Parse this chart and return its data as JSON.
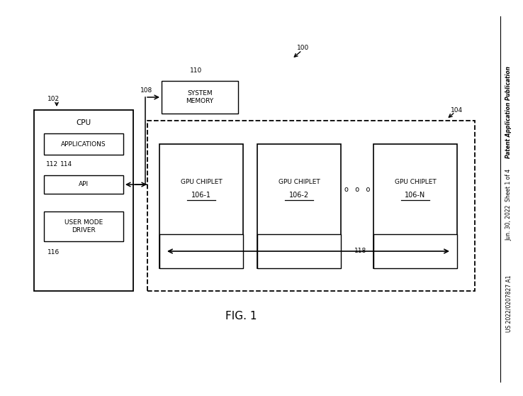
{
  "bg_color": "#ffffff",
  "fig_label": "FIG. 1",
  "right_text_line1": "Patent Application Publication",
  "right_text_line2": "Jun. 30, 2022  Sheet 1 of 4",
  "right_text_line3": "US 2022/0207827 A1",
  "label_100": "100",
  "label_102": "102",
  "label_104": "104",
  "label_108": "108",
  "label_110": "110",
  "label_112": "112",
  "label_114": "114",
  "label_116": "116",
  "label_118": "118",
  "cpu_box_label": "CPU",
  "apps_label": "APPLICATIONS",
  "api_label": "API",
  "usermode_label": "USER MODE\nDRIVER",
  "sysmem_label": "SYSTEM\nMEMORY",
  "chiplet1_top": "GPU CHIPLET",
  "chiplet1_bot": "106-1",
  "chiplet2_top": "GPU CHIPLET",
  "chiplet2_bot": "106-2",
  "chipletN_top": "GPU CHIPLET",
  "chipletN_bot": "106-N",
  "dots_label": "o   o   o"
}
